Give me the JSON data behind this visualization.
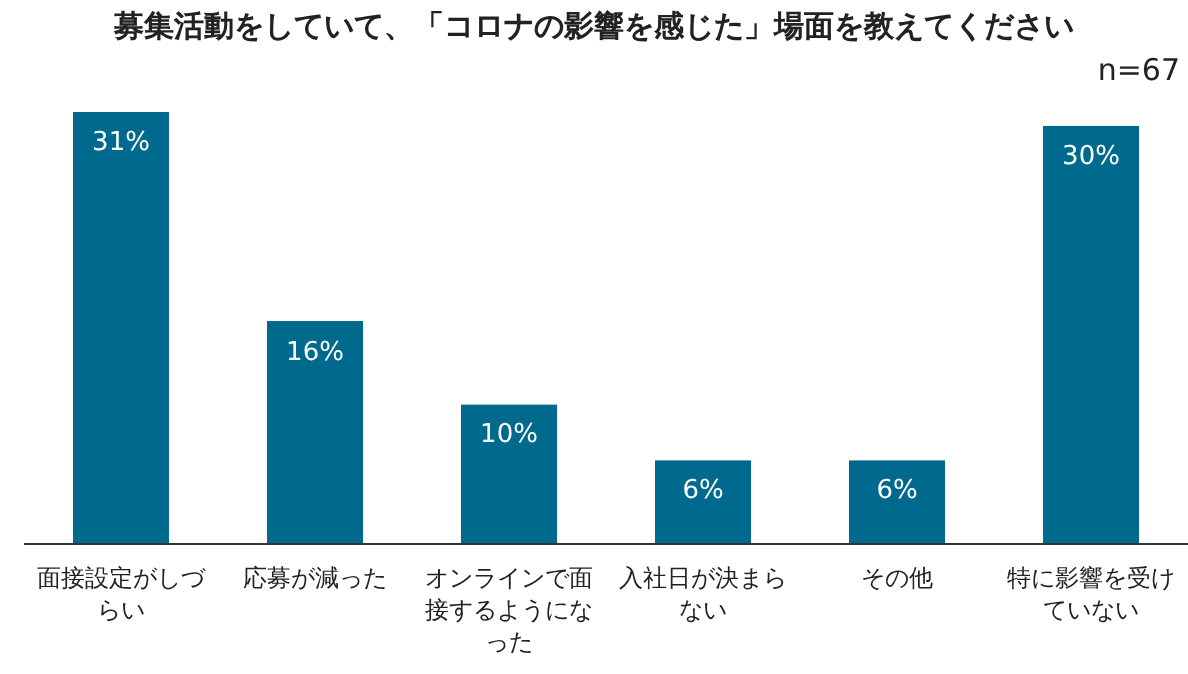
{
  "chart_data": {
    "type": "bar",
    "title": "募集活動をしていて、「コロナの影響を感じた」場面を教えてください",
    "annotations": [
      "n=67"
    ],
    "categories": [
      "面接設定がしづらい",
      "応募が減った",
      "オンラインで面接するようになった",
      "入社日が決まらない",
      "その他",
      "特に影響を受けていない"
    ],
    "values": [
      31,
      16,
      10,
      6,
      6,
      30
    ],
    "color": "#006a8e",
    "value_labels": [
      "31%",
      "16%",
      "10%",
      "6%",
      "6%",
      "30%"
    ]
  }
}
